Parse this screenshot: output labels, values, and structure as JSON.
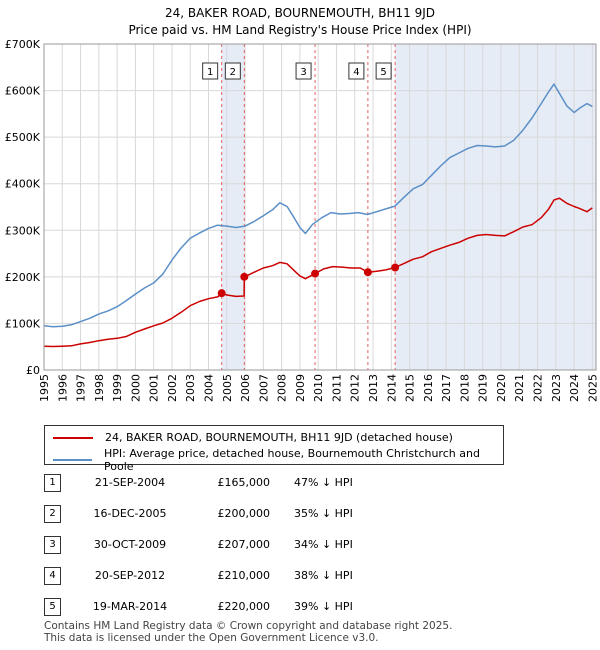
{
  "title": "24, BAKER ROAD, BOURNEMOUTH, BH11 9JD",
  "subtitle": "Price paid vs. HM Land Registry's House Price Index (HPI)",
  "chart_data": {
    "type": "line",
    "title": "24, BAKER ROAD, BOURNEMOUTH, BH11 9JD",
    "subtitle": "Price paid vs. HM Land Registry's House Price Index (HPI)",
    "xlabel": "",
    "ylabel": "",
    "xlim": [
      1995,
      2025.2
    ],
    "ylim": [
      0,
      700000
    ],
    "grid": true,
    "y_ticks": [
      {
        "value": 0,
        "label": "£0"
      },
      {
        "value": 100000,
        "label": "£100K"
      },
      {
        "value": 200000,
        "label": "£200K"
      },
      {
        "value": 300000,
        "label": "£300K"
      },
      {
        "value": 400000,
        "label": "£400K"
      },
      {
        "value": 500000,
        "label": "£500K"
      },
      {
        "value": 600000,
        "label": "£600K"
      },
      {
        "value": 700000,
        "label": "£700K"
      }
    ],
    "x_ticks": [
      "1995",
      "1996",
      "1997",
      "1998",
      "1999",
      "2000",
      "2001",
      "2002",
      "2003",
      "2004",
      "2005",
      "2006",
      "2007",
      "2008",
      "2009",
      "2010",
      "2011",
      "2012",
      "2013",
      "2014",
      "2015",
      "2016",
      "2017",
      "2018",
      "2019",
      "2020",
      "2021",
      "2022",
      "2023",
      "2024",
      "2025"
    ],
    "shaded_ranges": [
      [
        2004.72,
        2005.96
      ],
      [
        2014.21,
        2025.2
      ]
    ],
    "series": [
      {
        "name": "24, BAKER ROAD, BOURNEMOUTH, BH11 9JD (detached house)",
        "color": "#cc0000",
        "x": [
          1995.0,
          1995.5,
          1996.0,
          1996.5,
          1997.0,
          1997.5,
          1998.0,
          1998.5,
          1999.0,
          1999.5,
          2000.0,
          2000.5,
          2001.0,
          2001.5,
          2002.0,
          2002.5,
          2003.0,
          2003.5,
          2004.0,
          2004.5,
          2004.72,
          2005.0,
          2005.5,
          2005.95,
          2005.96,
          2006.5,
          2007.0,
          2007.5,
          2007.9,
          2008.3,
          2008.7,
          2009.0,
          2009.3,
          2009.83,
          2010.3,
          2010.8,
          2011.3,
          2011.8,
          2012.3,
          2012.72,
          2013.2,
          2013.7,
          2014.21,
          2014.7,
          2015.2,
          2015.7,
          2016.2,
          2016.7,
          2017.2,
          2017.7,
          2018.2,
          2018.7,
          2019.2,
          2019.7,
          2020.2,
          2020.7,
          2021.2,
          2021.7,
          2022.2,
          2022.6,
          2022.9,
          2023.2,
          2023.6,
          2024.0,
          2024.3,
          2024.7,
          2025.0
        ],
        "values": [
          51000,
          50500,
          51000,
          52000,
          56000,
          59000,
          63000,
          66000,
          68000,
          72000,
          81000,
          88000,
          95000,
          101000,
          111000,
          124000,
          138000,
          147000,
          153000,
          157000,
          165000,
          161000,
          158000,
          159000,
          200000,
          210000,
          219000,
          224000,
          231000,
          228000,
          213000,
          202000,
          196000,
          207000,
          217000,
          222000,
          221000,
          219000,
          219000,
          210000,
          212000,
          215000,
          220000,
          229000,
          238000,
          243000,
          254000,
          261000,
          268000,
          274000,
          283000,
          289000,
          291000,
          289000,
          288000,
          297000,
          307000,
          312000,
          327000,
          345000,
          365000,
          369000,
          358000,
          351000,
          347000,
          340000,
          348000
        ]
      },
      {
        "name": "HPI: Average price, detached house, Bournemouth Christchurch and Poole",
        "color": "#5b8fc7",
        "x": [
          1995.0,
          1995.5,
          1996.0,
          1996.5,
          1997.0,
          1997.5,
          1998.0,
          1998.5,
          1999.0,
          1999.5,
          2000.0,
          2000.5,
          2001.0,
          2001.5,
          2002.0,
          2002.5,
          2003.0,
          2003.5,
          2004.0,
          2004.5,
          2005.0,
          2005.5,
          2006.0,
          2006.5,
          2007.0,
          2007.5,
          2007.9,
          2008.3,
          2008.7,
          2009.0,
          2009.3,
          2009.7,
          2010.2,
          2010.7,
          2011.2,
          2011.7,
          2012.2,
          2012.7,
          2013.2,
          2013.7,
          2014.2,
          2014.7,
          2015.2,
          2015.7,
          2016.2,
          2016.7,
          2017.2,
          2017.7,
          2018.2,
          2018.7,
          2019.2,
          2019.7,
          2020.2,
          2020.7,
          2021.2,
          2021.7,
          2022.2,
          2022.6,
          2022.9,
          2023.2,
          2023.6,
          2024.0,
          2024.3,
          2024.7,
          2025.0
        ],
        "values": [
          95000,
          93000,
          94000,
          97000,
          104000,
          111000,
          120000,
          127000,
          136000,
          149000,
          163000,
          176000,
          187000,
          206000,
          236000,
          262000,
          283000,
          294000,
          304000,
          311000,
          309000,
          306000,
          309000,
          319000,
          331000,
          344000,
          359000,
          351000,
          326000,
          306000,
          293000,
          313000,
          327000,
          338000,
          335000,
          336000,
          338000,
          334000,
          340000,
          346000,
          352000,
          371000,
          389000,
          398000,
          418000,
          438000,
          456000,
          466000,
          476000,
          482000,
          481000,
          479000,
          481000,
          493000,
          515000,
          541000,
          572000,
          597000,
          614000,
          594000,
          567000,
          553000,
          562000,
          572000,
          566000
        ]
      }
    ],
    "transactions": [
      {
        "n": "1",
        "x": 2004.72,
        "price": 165000
      },
      {
        "n": "2",
        "x": 2005.96,
        "price": 200000
      },
      {
        "n": "3",
        "x": 2009.83,
        "price": 207000
      },
      {
        "n": "4",
        "x": 2012.72,
        "price": 210000
      },
      {
        "n": "5",
        "x": 2014.21,
        "price": 220000
      }
    ]
  },
  "legend": {
    "property": "24, BAKER ROAD, BOURNEMOUTH, BH11 9JD (detached house)",
    "hpi": "HPI: Average price, detached house, Bournemouth Christchurch and Poole"
  },
  "table": [
    {
      "n": "1",
      "date": "21-SEP-2004",
      "price": "£165,000",
      "hpi": "47% ↓ HPI"
    },
    {
      "n": "2",
      "date": "16-DEC-2005",
      "price": "£200,000",
      "hpi": "35% ↓ HPI"
    },
    {
      "n": "3",
      "date": "30-OCT-2009",
      "price": "£207,000",
      "hpi": "34% ↓ HPI"
    },
    {
      "n": "4",
      "date": "20-SEP-2012",
      "price": "£210,000",
      "hpi": "38% ↓ HPI"
    },
    {
      "n": "5",
      "date": "19-MAR-2014",
      "price": "£220,000",
      "hpi": "39% ↓ HPI"
    }
  ],
  "footer": {
    "line1": "Contains HM Land Registry data © Crown copyright and database right 2025.",
    "line2": "This data is licensed under the Open Government Licence v3.0."
  },
  "colors": {
    "property": "#cc0000",
    "hpi": "#5b8fc7",
    "shade": "#e6ecf6",
    "grid": "#d8d8d8",
    "vline": "#e06060"
  }
}
